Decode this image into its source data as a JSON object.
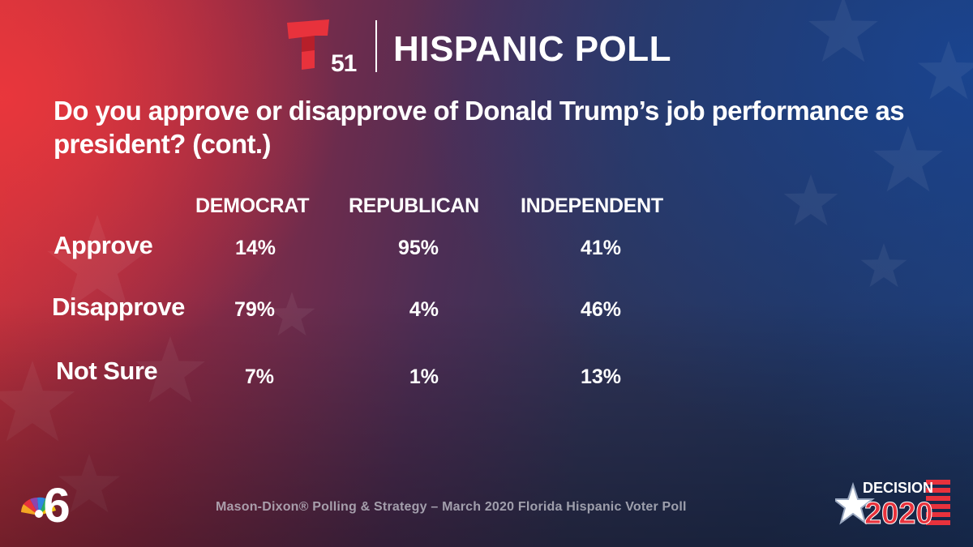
{
  "header": {
    "channel_number": "51",
    "title": "HISPANIC POLL"
  },
  "question": "Do you approve or disapprove of Donald Trump’s job performance as president? (cont.)",
  "table": {
    "columns": [
      "DEMOCRAT",
      "REPUBLICAN",
      "INDEPENDENT"
    ],
    "rows": [
      {
        "label": "Approve",
        "values": [
          "14%",
          "95%",
          "41%"
        ]
      },
      {
        "label": "Disapprove",
        "values": [
          "79%",
          "4%",
          "46%"
        ]
      },
      {
        "label": "Not Sure",
        "values": [
          "7%",
          "1%",
          "13%"
        ]
      }
    ]
  },
  "footer": {
    "source": "Mason-Dixon® Polling & Strategy – March 2020 Florida Hispanic Voter Poll"
  },
  "badges": {
    "station_number": "6",
    "decision_word": "DECISION",
    "decision_year": "2020"
  },
  "icons": [
    "telemundo-logo-icon",
    "nbc-peacock-icon",
    "decision-2020-star-icon"
  ],
  "colors": {
    "red": "#e8323c",
    "blue": "#1f3a6c",
    "text": "#ffffff",
    "footer_text": "#c8c8d2"
  }
}
